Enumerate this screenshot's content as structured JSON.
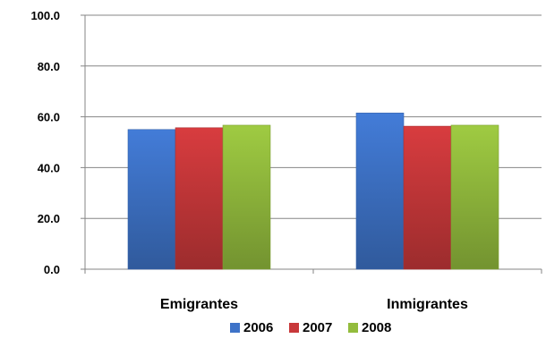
{
  "chart_data": {
    "type": "bar",
    "categories": [
      "Emigrantes",
      "Inmigrantes"
    ],
    "series": [
      {
        "name": "2006",
        "values": [
          55.0,
          61.5
        ],
        "color": "#3E73C8"
      },
      {
        "name": "2007",
        "values": [
          55.7,
          56.3
        ],
        "color": "#C8383A"
      },
      {
        "name": "2008",
        "values": [
          56.7,
          56.7
        ],
        "color": "#93BC3D"
      }
    ],
    "ylim": [
      0,
      100
    ],
    "yticks": [
      "0.0",
      "20.0",
      "40.0",
      "60.0",
      "80.0",
      "100.0"
    ],
    "ytick_values": [
      0,
      20,
      40,
      60,
      80,
      100
    ],
    "grid": true,
    "legend": "bottom",
    "title": "",
    "xlabel": "",
    "ylabel": ""
  }
}
